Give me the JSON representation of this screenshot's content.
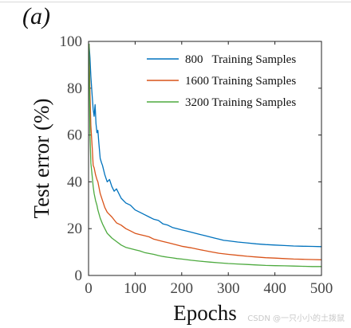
{
  "figure": {
    "panel_label": "(a)",
    "watermark": "CSDN @一只小小的土拨鼠"
  },
  "chart_data": {
    "type": "line",
    "xlabel": "Epochs",
    "ylabel": "Test error (%)",
    "xlim": [
      0,
      500
    ],
    "ylim": [
      0,
      100
    ],
    "xticks": [
      0,
      100,
      200,
      300,
      400,
      500
    ],
    "yticks": [
      0,
      20,
      40,
      60,
      80,
      100
    ],
    "legend_position": "top-right",
    "grid": false,
    "series": [
      {
        "name": "800   Training Samples",
        "color": "#0072BD",
        "x": [
          1,
          3,
          5,
          8,
          10,
          12,
          14,
          16,
          18,
          20,
          22,
          25,
          28,
          30,
          35,
          40,
          45,
          50,
          55,
          60,
          70,
          80,
          90,
          100,
          110,
          120,
          130,
          140,
          150,
          160,
          170,
          180,
          190,
          200,
          210,
          220,
          230,
          240,
          250,
          260,
          270,
          280,
          290,
          300,
          320,
          340,
          360,
          380,
          400,
          420,
          440,
          460,
          480,
          500
        ],
        "values": [
          99,
          93,
          85,
          76,
          71,
          68,
          73,
          65,
          61,
          62,
          57,
          50,
          48,
          47,
          43,
          40,
          41,
          38,
          36,
          37,
          33,
          31,
          30,
          28,
          27,
          26,
          25,
          24,
          23.5,
          22,
          21.5,
          20.5,
          20,
          19.5,
          19,
          18.5,
          18,
          17.5,
          17,
          16.5,
          16,
          15.5,
          15,
          14.8,
          14.3,
          13.9,
          13.5,
          13.2,
          13,
          12.8,
          12.6,
          12.5,
          12.4,
          12.3
        ]
      },
      {
        "name": "1600 Training Samples",
        "color": "#D95319",
        "x": [
          1,
          3,
          5,
          8,
          10,
          12,
          15,
          18,
          20,
          25,
          30,
          35,
          40,
          45,
          50,
          60,
          70,
          80,
          90,
          100,
          110,
          120,
          130,
          140,
          150,
          160,
          170,
          180,
          190,
          200,
          220,
          240,
          260,
          280,
          300,
          320,
          340,
          360,
          380,
          400,
          420,
          440,
          460,
          480,
          500
        ],
        "values": [
          99,
          78,
          64,
          54,
          47,
          46,
          43,
          41,
          40,
          35,
          32,
          29,
          27,
          26,
          25,
          22.5,
          21.5,
          20,
          19,
          18,
          17.5,
          17,
          16.5,
          15.5,
          15,
          14.5,
          14,
          13.5,
          13,
          12.5,
          11.8,
          11,
          10.2,
          9.5,
          9,
          8.6,
          8.2,
          7.9,
          7.6,
          7.4,
          7.2,
          7,
          6.9,
          6.8,
          6.7
        ]
      },
      {
        "name": "3200 Training Samples",
        "color": "#4DAA3F",
        "x": [
          1,
          3,
          5,
          8,
          10,
          12,
          15,
          18,
          20,
          25,
          30,
          35,
          40,
          45,
          50,
          60,
          70,
          80,
          90,
          100,
          110,
          120,
          130,
          140,
          150,
          160,
          170,
          180,
          190,
          200,
          220,
          240,
          260,
          280,
          300,
          320,
          340,
          360,
          380,
          400,
          420,
          440,
          460,
          480,
          500
        ],
        "values": [
          99,
          60,
          48,
          42,
          38,
          35,
          32,
          30,
          28,
          24.5,
          22,
          20,
          18,
          17,
          16,
          14.5,
          13,
          12,
          11.5,
          11,
          10.5,
          9.8,
          9.4,
          9,
          8.5,
          8.1,
          7.8,
          7.5,
          7.2,
          7,
          6.5,
          6.1,
          5.7,
          5.4,
          5.1,
          4.9,
          4.7,
          4.5,
          4.3,
          4.2,
          4.1,
          4,
          3.9,
          3.8,
          3.8
        ]
      }
    ]
  }
}
